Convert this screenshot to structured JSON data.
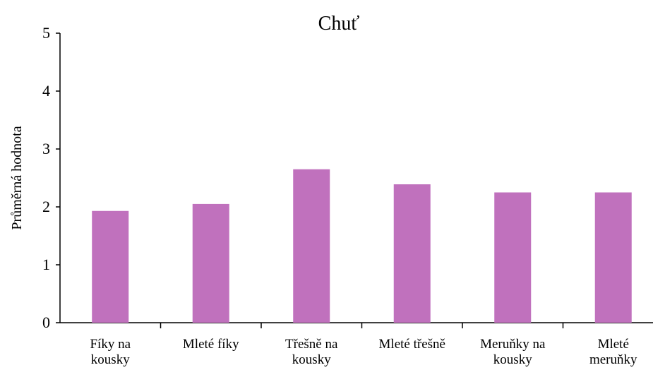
{
  "chart_data": {
    "type": "bar",
    "title": "Chuť",
    "y_label": "Průměrná hodnota",
    "categories": [
      "Fíky na\nkousky",
      "Mleté fíky",
      "Třešně na\nkousky",
      "Mleté třešně",
      "Meruňky na\nkousky",
      "Mleté\nmeruňky"
    ],
    "values": [
      1.93,
      2.05,
      2.65,
      2.39,
      2.25,
      2.25
    ],
    "color": "#c071bd",
    "ylim": [
      0,
      5
    ],
    "yticks": [
      0,
      1,
      2,
      3,
      4,
      5
    ],
    "grid": false
  }
}
